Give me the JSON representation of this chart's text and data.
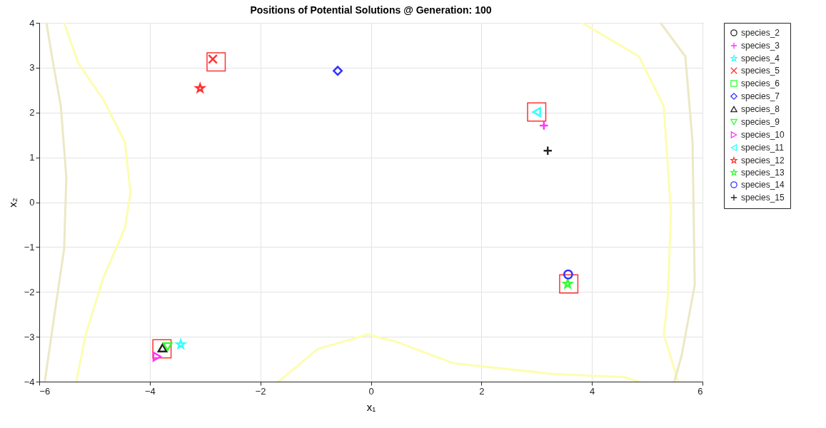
{
  "chart_data": {
    "type": "scatter",
    "title": "Positions of Potential Solutions @ Generation: 100",
    "xlabel": "x₁",
    "ylabel": "x₂",
    "xlim": [
      -6,
      6
    ],
    "xticks": [
      -6,
      -4,
      -2,
      0,
      2,
      4,
      6
    ],
    "ylim": [
      -4,
      4
    ],
    "yticks": [
      -4,
      -3,
      -2,
      -1,
      0,
      1,
      2,
      3,
      4
    ],
    "grid": true,
    "legend": "right",
    "series": [
      {
        "type": "line",
        "color": "#fdfdb0",
        "marker": "none",
        "x": [
          -5.33,
          -5.16,
          -4.84,
          -4.45,
          -4.35,
          -4.45,
          -4.84,
          -5.29,
          -5.55
        ],
        "values": [
          -4,
          -2.95,
          -1.68,
          -0.57,
          0.22,
          1.34,
          2.29,
          3.09,
          4
        ]
      },
      {
        "type": "line",
        "color": "#ece8c4",
        "marker": "none",
        "x": [
          -5.9,
          -5.74,
          -5.55,
          -5.51,
          -5.61,
          -5.77,
          -5.87
        ],
        "values": [
          -4,
          -2.63,
          -1.04,
          0.55,
          2.14,
          3.25,
          4
        ]
      },
      {
        "type": "line",
        "color": "#fdfdb0",
        "marker": "none",
        "x": [
          -1.67,
          -0.96,
          -0.06,
          0.46,
          1.49,
          3.3,
          4.59,
          4.85
        ],
        "values": [
          -4,
          -3.27,
          -2.95,
          -3.11,
          -3.59,
          -3.83,
          -3.9,
          -4
        ]
      },
      {
        "type": "line",
        "color": "#fdfdb0",
        "marker": "none",
        "x": [
          3.82,
          4.85,
          5.3,
          5.43,
          5.37,
          5.3,
          5.56
        ],
        "values": [
          4,
          3.25,
          2.14,
          -0.25,
          -2.16,
          -2.95,
          -4
        ]
      },
      {
        "type": "line",
        "color": "#ece8c4",
        "marker": "none",
        "x": [
          5.24,
          5.69,
          5.82,
          5.86,
          5.62,
          5.49
        ],
        "values": [
          4,
          3.25,
          1.34,
          -1.84,
          -3.43,
          -4
        ]
      },
      {
        "type": "scatter",
        "color": "#ff3333",
        "marker": "square",
        "x": [
          -2.8,
          3.0,
          3.58,
          -3.78
        ],
        "values": [
          3.13,
          2.01,
          -1.82,
          -3.27
        ]
      },
      {
        "name": "species_2",
        "color": "#262626",
        "marker": "circle",
        "x": [
          null
        ],
        "values": [
          null
        ]
      },
      {
        "name": "species_3",
        "color": "#ff33ff",
        "marker": "cross",
        "x": [
          3.13
        ],
        "values": [
          1.71
        ]
      },
      {
        "name": "species_4",
        "color": "#33ffff",
        "marker": "star",
        "x": [
          -3.44
        ],
        "values": [
          -3.17
        ]
      },
      {
        "name": "species_5",
        "color": "#ff3333",
        "marker": "x",
        "x": [
          -2.86
        ],
        "values": [
          3.19
        ]
      },
      {
        "name": "species_6",
        "color": "#33ff33",
        "marker": "square",
        "x": [
          null
        ],
        "values": [
          null
        ]
      },
      {
        "name": "species_7",
        "color": "#3333ff",
        "marker": "diamond",
        "x": [
          -0.6
        ],
        "values": [
          2.93
        ]
      },
      {
        "name": "species_8",
        "color": "#262626",
        "marker": "triangle-up",
        "x": [
          -3.77
        ],
        "values": [
          -3.25
        ]
      },
      {
        "name": "species_9",
        "color": "#33ff33",
        "marker": "triangle-down",
        "x": [
          -3.68
        ],
        "values": [
          -3.22
        ]
      },
      {
        "name": "species_10",
        "color": "#ff33ff",
        "marker": "triangle-right",
        "x": [
          -3.87
        ],
        "values": [
          -3.44
        ]
      },
      {
        "name": "species_11",
        "color": "#33ffff",
        "marker": "triangle-left",
        "x": [
          3.0
        ],
        "values": [
          2.01
        ]
      },
      {
        "name": "species_12",
        "color": "#ff3333",
        "marker": "star",
        "x": [
          -3.09
        ],
        "values": [
          2.54
        ]
      },
      {
        "name": "species_13",
        "color": "#33ff33",
        "marker": "star",
        "x": [
          3.56
        ],
        "values": [
          -1.82
        ]
      },
      {
        "name": "species_14",
        "color": "#3333ff",
        "marker": "circle",
        "x": [
          3.57
        ],
        "values": [
          -1.61
        ]
      },
      {
        "name": "species_15",
        "color": "#262626",
        "marker": "cross",
        "x": [
          3.2
        ],
        "values": [
          1.15
        ]
      }
    ]
  }
}
